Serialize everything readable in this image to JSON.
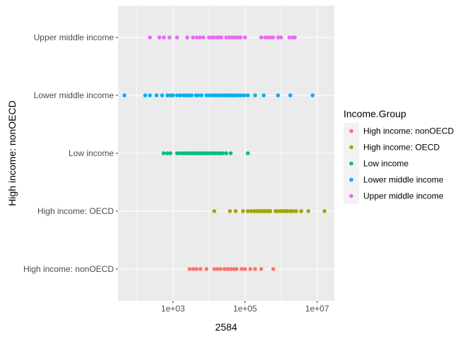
{
  "chart_data": {
    "type": "scatter",
    "xlabel": "2584",
    "ylabel": "High income: nonOECD",
    "x_scale": "log10",
    "xlim": [
      30,
      30000000
    ],
    "x_ticks": [
      1000,
      100000,
      10000000
    ],
    "x_tick_labels": [
      "1e+03",
      "1e+05",
      "1e+07"
    ],
    "grid": true,
    "legend_title": "Income.Group",
    "legend_position": "right",
    "categories": [
      "High income: nonOECD",
      "High income: OECD",
      "Low income",
      "Lower middle income",
      "Upper middle income"
    ],
    "series": [
      {
        "name": "High income: nonOECD",
        "color": "#F8766D",
        "x": [
          2900,
          3700,
          4500,
          5800,
          8500,
          14000,
          17000,
          21000,
          27000,
          33000,
          41000,
          50000,
          58000,
          80000,
          100000,
          140000,
          190000,
          280000,
          610000
        ]
      },
      {
        "name": "High income: OECD",
        "color": "#A3A500",
        "x": [
          14000,
          38000,
          55000,
          88000,
          120000,
          150000,
          180000,
          210000,
          240000,
          270000,
          300000,
          340000,
          380000,
          430000,
          500000,
          700000,
          800000,
          950000,
          1100000,
          1300000,
          1500000,
          1800000,
          2100000,
          2600000,
          3600000,
          5700000,
          16000000
        ]
      },
      {
        "name": "Low income",
        "color": "#00BF7D",
        "x": [
          550,
          700,
          850,
          1300,
          1600,
          1900,
          2200,
          2600,
          3000,
          3400,
          3900,
          4500,
          5200,
          6000,
          7000,
          8000,
          9300,
          11000,
          13000,
          15000,
          18000,
          21000,
          24000,
          30000,
          40000,
          120000
        ]
      },
      {
        "name": "Lower middle income",
        "color": "#00B0F6",
        "x": [
          45,
          170,
          230,
          350,
          500,
          700,
          850,
          1000,
          1300,
          1600,
          2000,
          2400,
          2800,
          3300,
          4300,
          5000,
          6200,
          8500,
          10000,
          12000,
          14500,
          17000,
          20000,
          24000,
          28000,
          32000,
          37000,
          42000,
          48000,
          55000,
          65000,
          78000,
          95000,
          120000,
          190000,
          330000,
          820000,
          1800000,
          7500000
        ]
      },
      {
        "name": "Upper middle income",
        "color": "#E76BF3",
        "x": [
          230,
          420,
          560,
          800,
          1300,
          2500,
          3600,
          4600,
          5600,
          7000,
          10000,
          12000,
          14000,
          17000,
          19000,
          22000,
          30000,
          36000,
          42000,
          48000,
          55000,
          65000,
          75000,
          100000,
          280000,
          360000,
          430000,
          510000,
          600000,
          830000,
          1000000,
          1700000,
          2100000,
          2400000
        ]
      }
    ]
  }
}
